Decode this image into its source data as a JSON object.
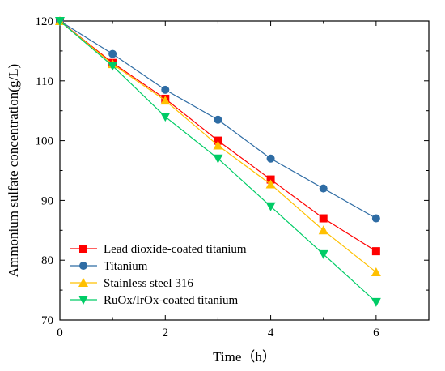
{
  "chart_data": {
    "type": "line",
    "title": "",
    "xlabel": "Time（h）",
    "ylabel": "Ammonium sulfate concentration(g/L)",
    "xlim": [
      0,
      7
    ],
    "ylim": [
      70,
      120
    ],
    "xticks": [
      0,
      2,
      4,
      6
    ],
    "yticks": [
      70,
      80,
      90,
      100,
      110,
      120
    ],
    "grid": false,
    "legend_position": "bottom-left",
    "x": [
      0,
      1,
      2,
      3,
      4,
      5,
      6
    ],
    "series": [
      {
        "name": "Lead dioxide-coated titanium",
        "values": [
          120,
          113,
          107,
          100,
          93.5,
          87,
          81.5
        ],
        "color": "#ff0000",
        "marker": "square"
      },
      {
        "name": "Titanium",
        "values": [
          120,
          114.5,
          108.5,
          103.5,
          97,
          92,
          87
        ],
        "color": "#2e6ca4",
        "marker": "circle"
      },
      {
        "name": "Stainless steel 316",
        "values": [
          120,
          112.8,
          106.7,
          99.2,
          92.7,
          85,
          78
        ],
        "color": "#ffc000",
        "marker": "triangle-up"
      },
      {
        "name": "RuOx/IrOx-coated titanium",
        "values": [
          120,
          112.5,
          104,
          97,
          89,
          81,
          73
        ],
        "color": "#00cc66",
        "marker": "triangle-down"
      }
    ]
  }
}
